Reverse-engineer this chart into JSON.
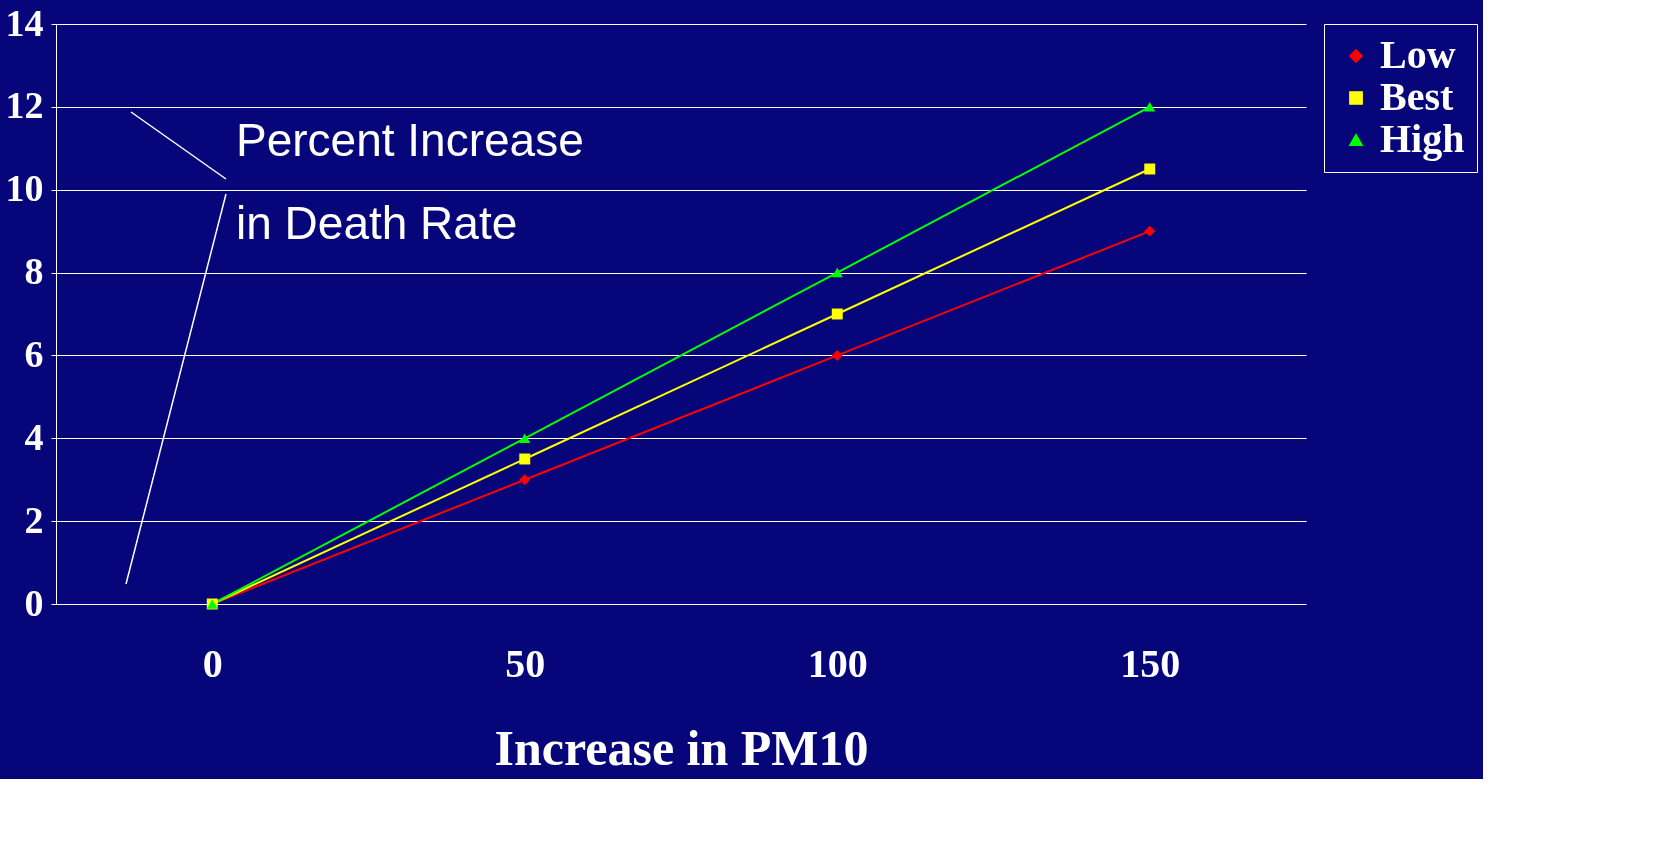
{
  "chart_data": {
    "type": "line",
    "xlabel": "Increase in PM10",
    "ylabel": "Percent Increase\nin Death Rate",
    "categories": [
      "0",
      "50",
      "100",
      "150"
    ],
    "series": [
      {
        "name": "Low",
        "color": "#ff0000",
        "values": [
          0,
          3,
          6,
          9
        ],
        "marker": "diamond"
      },
      {
        "name": "Best",
        "color": "#ffff00",
        "values": [
          0,
          3.5,
          7,
          10.5
        ],
        "marker": "square"
      },
      {
        "name": "High",
        "color": "#00ff00",
        "values": [
          0,
          4,
          8,
          12
        ],
        "marker": "triangle"
      }
    ],
    "ylim": [
      0,
      14
    ],
    "yticks": [
      0,
      2,
      4,
      6,
      8,
      10,
      12,
      14
    ],
    "grid": "y",
    "legend": "right"
  }
}
